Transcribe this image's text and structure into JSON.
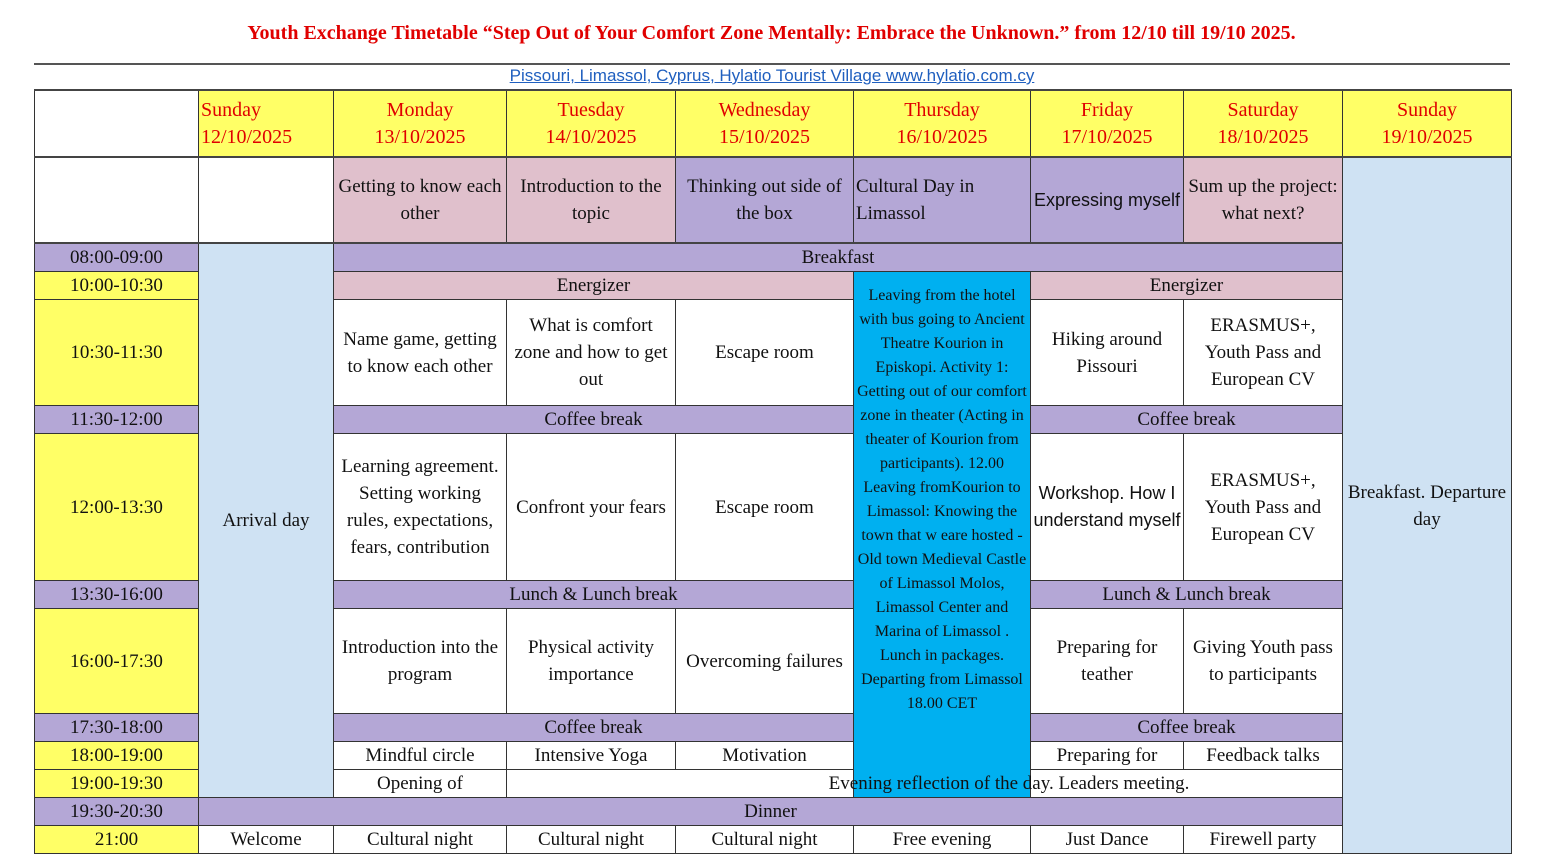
{
  "title": "Youth Exchange Timetable “Step Out of Your Comfort Zone Mentally: Embrace the Unknown.” from 12/10 till 19/10 2025.",
  "location": "Pissouri, Limassol, Cyprus, Hylatio Tourist Village www.hylatio.com.cy",
  "days": [
    {
      "name": "Sunday",
      "date": "12/10/2025"
    },
    {
      "name": "Monday",
      "date": "13/10/2025"
    },
    {
      "name": "Tuesday",
      "date": "14/10/2025"
    },
    {
      "name": "Wednesday",
      "date": "15/10/2025"
    },
    {
      "name": "Thursday",
      "date": "16/10/2025"
    },
    {
      "name": "Friday",
      "date": "17/10/2025"
    },
    {
      "name": "Saturday",
      "date": "18/10/2025"
    },
    {
      "name": "Sunday",
      "date": "19/10/2025"
    }
  ],
  "topics": [
    "Getting to know each other",
    "Introduction to the topic",
    "Thinking out side of the box",
    "Cultural Day in Limassol",
    "Expressing myself",
    "Sum up the project: what next?"
  ],
  "times": [
    "08:00-09:00",
    "10:00-10:30",
    "10:30-11:30",
    "11:30-12:00",
    "12:00-13:30",
    "13:30-16:00",
    "16:00-17:30",
    "17:30-18:00",
    "18:00-19:00",
    "19:00-19:30",
    "19:30-20:30",
    "21:00"
  ],
  "common": {
    "breakfast": "Breakfast",
    "energizer": "Energizer",
    "coffee": "Coffee break",
    "lunch": "Lunch & Lunch break",
    "reflection": "Evening reflection of the day. Leaders meeting.",
    "dinner": "Dinner"
  },
  "sunday_start": {
    "arrival": "Arrival day",
    "opening": "Opening of",
    "welcome": "Welcome"
  },
  "sunday_end": "Breakfast. Departure day",
  "thursday": "Leaving from the hotel with bus going to Ancient Theatre Kourion in Episkopi. Activity 1: Getting out of our comfort zone in theater (Acting in theater of Kourion from participants). 12.00 Leaving fromKourion to Limassol: Knowing the town that w eare hosted - Old town Medieval Castle of Limassol Molos, Limassol Center and Marina of Limassol . Lunch in packages. Departing from Limassol 18.00 CET",
  "morning": [
    "Name game, getting to know each other",
    "What is comfort zone and how to get out",
    "Escape room",
    "Hiking around Pissouri",
    "ERASMUS+, Youth Pass and European CV"
  ],
  "midday": [
    "Learning agreement. Setting working rules, expectations, fears, contribution",
    "Confront your fears",
    "Escape room",
    "Workshop. How I understand myself",
    "ERASMUS+, Youth Pass and European CV"
  ],
  "afternoon": [
    "Introduction into the program",
    "Physical activity importance",
    "Overcoming failures",
    "Preparing for teather",
    "Giving Youth pass to participants"
  ],
  "evening": [
    "Mindful circle",
    "Intensive Yoga",
    "Motivation",
    "Preparing for",
    "Feedback talks"
  ],
  "night": [
    "Cultural night",
    "Cultural night",
    "Cultural night",
    "Free evening",
    "Just Dance",
    "Firewell party"
  ],
  "colors": {
    "yellow": "#ffff66",
    "purple": "#b4a7d6",
    "pink": "#e0c0cc",
    "lightblue": "#cfe2f3",
    "cyan": "#00b0f0",
    "title": "#e00000"
  }
}
